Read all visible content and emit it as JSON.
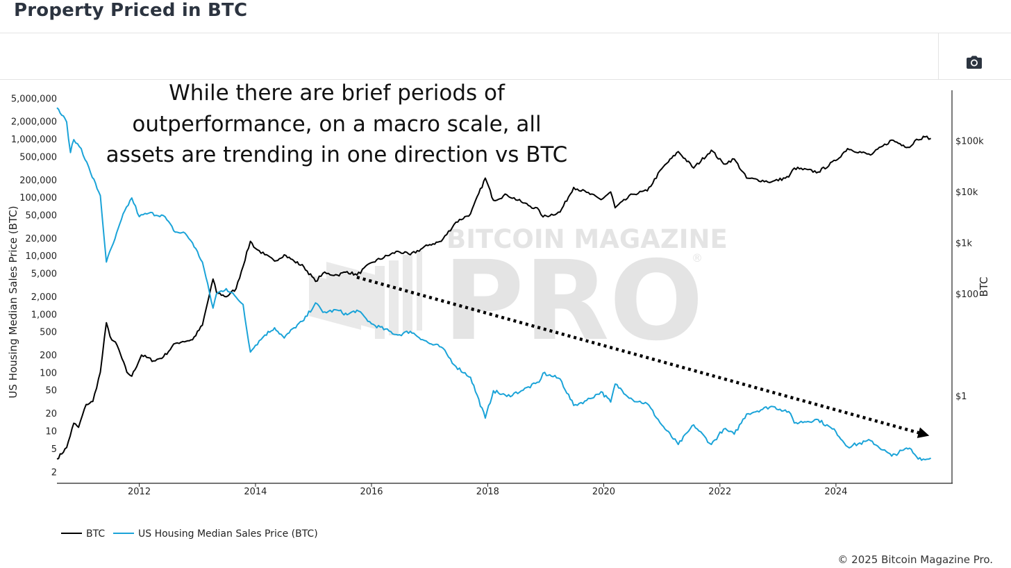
{
  "header": {
    "title": "Property Priced in BTC"
  },
  "toolbar": {
    "camera_icon": "camera-icon"
  },
  "footer": {
    "copyright": "© 2025 Bitcoin Magazine Pro."
  },
  "watermark": {
    "line1": "BITCOIN MAGAZINE",
    "line2": "PRO",
    "mark": "®"
  },
  "colors": {
    "btc": "#000000",
    "housing": "#1aa3d8",
    "arrow": "#000000"
  },
  "chart_data": {
    "type": "line",
    "annotation": [
      "While there are brief periods of",
      "outperformance, on a macro scale, all",
      "assets are trending in one direction vs BTC"
    ],
    "x_ticks": [
      "2012",
      "2014",
      "2016",
      "2018",
      "2020",
      "2022",
      "2024"
    ],
    "xlim": [
      "2010-08-01",
      "2025-12-31"
    ],
    "y_left": {
      "label": "US Housing Median Sales Price (BTC)",
      "scale": "log",
      "ylim": [
        1.3,
        7000000
      ],
      "tick_values": [
        2,
        5,
        10,
        20,
        50,
        100,
        200,
        500,
        1000,
        2000,
        5000,
        10000,
        20000,
        50000,
        100000,
        200000,
        500000,
        1000000,
        2000000,
        5000000
      ],
      "tick_labels": [
        "2",
        "5",
        "10",
        "20",
        "50",
        "100",
        "200",
        "500",
        "1,000",
        "2,000",
        "5,000",
        "10,000",
        "20,000",
        "50,000",
        "100,000",
        "200,000",
        "500,000",
        "1,000,000",
        "2,000,000",
        "5,000,000"
      ]
    },
    "y_right": {
      "label": "BTC",
      "scale": "log",
      "ylim": [
        0.02,
        1000000
      ],
      "tick_values": [
        1,
        100,
        1000,
        10000,
        100000
      ],
      "tick_labels": [
        "$1",
        "$100",
        "$1k",
        "$10k",
        "$100k"
      ]
    },
    "legend_position": "bottom-left",
    "series": [
      {
        "name": "BTC",
        "axis": "right",
        "points": [
          [
            "2010-08-01",
            0.06
          ],
          [
            "2010-10-01",
            0.1
          ],
          [
            "2010-11-15",
            0.3
          ],
          [
            "2010-12-15",
            0.25
          ],
          [
            "2011-02-01",
            0.7
          ],
          [
            "2011-03-15",
            0.8
          ],
          [
            "2011-05-01",
            3
          ],
          [
            "2011-06-08",
            28
          ],
          [
            "2011-07-01",
            15
          ],
          [
            "2011-08-15",
            10
          ],
          [
            "2011-10-15",
            3
          ],
          [
            "2011-11-15",
            2.5
          ],
          [
            "2012-01-15",
            6.5
          ],
          [
            "2012-04-01",
            5
          ],
          [
            "2012-06-01",
            6
          ],
          [
            "2012-08-15",
            11
          ],
          [
            "2012-10-01",
            12
          ],
          [
            "2012-12-01",
            13
          ],
          [
            "2013-02-01",
            25
          ],
          [
            "2013-04-09",
            200
          ],
          [
            "2013-05-01",
            110
          ],
          [
            "2013-07-01",
            90
          ],
          [
            "2013-09-01",
            130
          ],
          [
            "2013-11-30",
            1100
          ],
          [
            "2014-01-01",
            800
          ],
          [
            "2014-03-01",
            600
          ],
          [
            "2014-05-01",
            450
          ],
          [
            "2014-07-01",
            600
          ],
          [
            "2014-09-01",
            450
          ],
          [
            "2014-11-01",
            350
          ],
          [
            "2015-01-14",
            180
          ],
          [
            "2015-03-01",
            260
          ],
          [
            "2015-06-01",
            240
          ],
          [
            "2015-08-01",
            280
          ],
          [
            "2015-10-01",
            240
          ],
          [
            "2016-01-01",
            420
          ],
          [
            "2016-06-15",
            700
          ],
          [
            "2016-09-01",
            600
          ],
          [
            "2017-01-01",
            950
          ],
          [
            "2017-03-15",
            1100
          ],
          [
            "2017-06-15",
            2600
          ],
          [
            "2017-09-15",
            3800
          ],
          [
            "2017-12-17",
            19000
          ],
          [
            "2018-02-06",
            7000
          ],
          [
            "2018-05-01",
            9000
          ],
          [
            "2018-08-01",
            6500
          ],
          [
            "2018-11-20",
            4500
          ],
          [
            "2018-12-15",
            3300
          ],
          [
            "2019-04-01",
            4100
          ],
          [
            "2019-06-26",
            12500
          ],
          [
            "2019-09-15",
            10000
          ],
          [
            "2019-12-15",
            7200
          ],
          [
            "2020-02-14",
            10200
          ],
          [
            "2020-03-13",
            5000
          ],
          [
            "2020-07-01",
            9200
          ],
          [
            "2020-10-01",
            10700
          ],
          [
            "2020-12-31",
            29000
          ],
          [
            "2021-04-14",
            63000
          ],
          [
            "2021-07-20",
            30000
          ],
          [
            "2021-11-08",
            67000
          ],
          [
            "2022-01-24",
            36000
          ],
          [
            "2022-04-01",
            45000
          ],
          [
            "2022-06-18",
            19000
          ],
          [
            "2022-11-21",
            16000
          ],
          [
            "2023-03-10",
            20000
          ],
          [
            "2023-04-14",
            30000
          ],
          [
            "2023-09-11",
            25000
          ],
          [
            "2023-12-31",
            42000
          ],
          [
            "2024-03-14",
            72000
          ],
          [
            "2024-08-05",
            54000
          ],
          [
            "2024-12-17",
            106000
          ],
          [
            "2025-02-28",
            84000
          ],
          [
            "2025-04-08",
            76000
          ],
          [
            "2025-05-22",
            110000
          ],
          [
            "2025-07-14",
            122000
          ],
          [
            "2025-08-20",
            114000
          ]
        ]
      },
      {
        "name": "US Housing Median Sales Price (BTC)",
        "axis": "left",
        "points": [
          [
            "2010-08-01",
            3500000
          ],
          [
            "2010-10-01",
            2000000
          ],
          [
            "2010-10-25",
            600000
          ],
          [
            "2010-11-15",
            1000000
          ],
          [
            "2011-01-01",
            700000
          ],
          [
            "2011-03-01",
            270000
          ],
          [
            "2011-05-01",
            110000
          ],
          [
            "2011-06-08",
            8000
          ],
          [
            "2011-08-01",
            20000
          ],
          [
            "2011-10-01",
            60000
          ],
          [
            "2011-11-15",
            100000
          ],
          [
            "2012-01-01",
            48000
          ],
          [
            "2012-03-01",
            55000
          ],
          [
            "2012-06-01",
            50000
          ],
          [
            "2012-08-15",
            26000
          ],
          [
            "2012-10-15",
            25000
          ],
          [
            "2012-12-01",
            17000
          ],
          [
            "2013-02-01",
            8000
          ],
          [
            "2013-04-09",
            1300
          ],
          [
            "2013-05-01",
            2300
          ],
          [
            "2013-07-01",
            2800
          ],
          [
            "2013-09-01",
            2000
          ],
          [
            "2013-10-15",
            1500
          ],
          [
            "2013-11-30",
            230
          ],
          [
            "2014-01-01",
            300
          ],
          [
            "2014-03-01",
            450
          ],
          [
            "2014-05-01",
            600
          ],
          [
            "2014-07-01",
            400
          ],
          [
            "2014-09-01",
            600
          ],
          [
            "2014-11-01",
            800
          ],
          [
            "2015-01-14",
            1600
          ],
          [
            "2015-03-01",
            1100
          ],
          [
            "2015-06-01",
            1200
          ],
          [
            "2015-08-01",
            1000
          ],
          [
            "2015-10-01",
            1200
          ],
          [
            "2016-01-01",
            700
          ],
          [
            "2016-06-15",
            450
          ],
          [
            "2016-09-01",
            520
          ],
          [
            "2017-01-01",
            320
          ],
          [
            "2017-03-15",
            280
          ],
          [
            "2017-06-15",
            130
          ],
          [
            "2017-09-15",
            85
          ],
          [
            "2017-12-17",
            17
          ],
          [
            "2018-02-06",
            50
          ],
          [
            "2018-05-01",
            40
          ],
          [
            "2018-08-01",
            50
          ],
          [
            "2018-11-20",
            70
          ],
          [
            "2018-12-15",
            100
          ],
          [
            "2019-04-01",
            80
          ],
          [
            "2019-06-26",
            28
          ],
          [
            "2019-09-15",
            34
          ],
          [
            "2019-12-15",
            48
          ],
          [
            "2020-02-14",
            32
          ],
          [
            "2020-03-13",
            65
          ],
          [
            "2020-07-01",
            35
          ],
          [
            "2020-10-01",
            30
          ],
          [
            "2020-12-31",
            13
          ],
          [
            "2021-04-14",
            6
          ],
          [
            "2021-07-20",
            13
          ],
          [
            "2021-11-08",
            6
          ],
          [
            "2022-01-24",
            11
          ],
          [
            "2022-04-01",
            9
          ],
          [
            "2022-06-18",
            20
          ],
          [
            "2022-11-21",
            27
          ],
          [
            "2023-03-10",
            22
          ],
          [
            "2023-04-14",
            14
          ],
          [
            "2023-09-11",
            16
          ],
          [
            "2023-12-31",
            10
          ],
          [
            "2024-03-14",
            5.5
          ],
          [
            "2024-08-05",
            7
          ],
          [
            "2024-12-17",
            3.8
          ],
          [
            "2025-02-28",
            4.8
          ],
          [
            "2025-04-08",
            5.2
          ],
          [
            "2025-05-22",
            3.7
          ],
          [
            "2025-07-14",
            3.3
          ],
          [
            "2025-08-20",
            3.5
          ]
        ]
      }
    ],
    "trend_arrow": {
      "from": [
        "2015-10-01",
        4400
      ],
      "to": [
        "2025-08-20",
        9
      ]
    }
  }
}
